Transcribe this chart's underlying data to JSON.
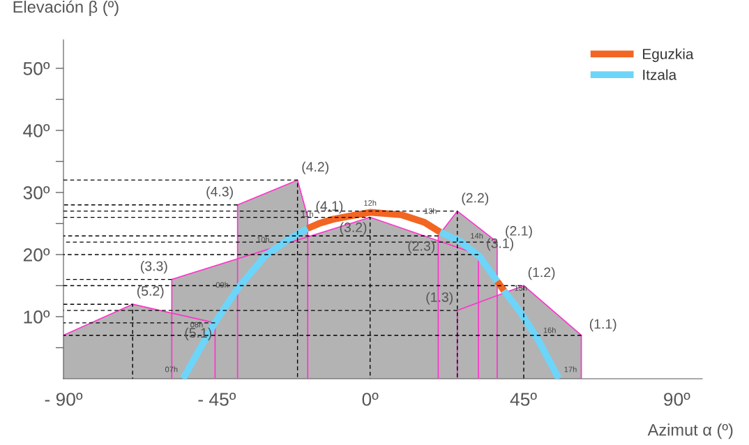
{
  "chart_data": {
    "type": "line",
    "xlabel": "Azimut α (º)",
    "ylabel": "Elevación β (º)",
    "xlim": [
      -90,
      97.5
    ],
    "ylim": [
      0,
      54.6
    ],
    "xticks": [
      {
        "value": -90,
        "label": "- 90º"
      },
      {
        "value": -45,
        "label": "- 45º"
      },
      {
        "value": 0,
        "label": "0º"
      },
      {
        "value": 45,
        "label": "45º"
      },
      {
        "value": 90,
        "label": "90º"
      }
    ],
    "yticks": [
      {
        "value": 5,
        "label": null
      },
      {
        "value": 10,
        "label": "10º"
      },
      {
        "value": 15,
        "label": null
      },
      {
        "value": 20,
        "label": "20º"
      },
      {
        "value": 25,
        "label": null
      },
      {
        "value": 30,
        "label": "30º"
      },
      {
        "value": 35,
        "label": null
      },
      {
        "value": 40,
        "label": "40º"
      },
      {
        "value": 45,
        "label": null
      },
      {
        "value": 50,
        "label": "50º"
      }
    ],
    "grid": false,
    "legend": "top right",
    "series": [
      {
        "type": "area",
        "color": "#b3b3b3",
        "x": [
          -90,
          -69.7,
          -45.5,
          -45.5
        ],
        "values": [
          7,
          12,
          9,
          0
        ]
      },
      {
        "type": "area",
        "color": "#b3b3b3",
        "x": [
          -58.2,
          -58.2,
          0,
          31.8,
          31.8
        ],
        "values": [
          0,
          16,
          26,
          20,
          0
        ]
      },
      {
        "type": "area",
        "color": "#b3b3b3",
        "x": [
          -38.9,
          -38.9,
          -21.3,
          -18.3,
          -18.3
        ],
        "values": [
          0,
          28,
          32,
          26,
          0
        ]
      },
      {
        "type": "area",
        "color": "#b3b3b3",
        "x": [
          20,
          20,
          25.6,
          37.3,
          37.3
        ],
        "values": [
          0,
          23,
          27,
          22,
          0
        ]
      },
      {
        "type": "area",
        "color": "#b3b3b3",
        "x": [
          25.6,
          25.6,
          45.1,
          62,
          62
        ],
        "values": [
          0,
          11,
          15,
          7,
          0
        ]
      },
      {
        "color": "#000000",
        "line_style": "dashed",
        "x": [
          -90,
          -69.7,
          -69.7
        ],
        "values": [
          12,
          12,
          0
        ]
      },
      {
        "color": "#000000",
        "line_style": "dashed",
        "x": [
          -45.5,
          -90
        ],
        "values": [
          9,
          9
        ]
      },
      {
        "color": "#000000",
        "line_style": "dashed",
        "x": [
          -58.2,
          -90
        ],
        "values": [
          16,
          16
        ]
      },
      {
        "color": "#000000",
        "line_style": "dashed",
        "x": [
          -38.9,
          -90
        ],
        "values": [
          28,
          28
        ]
      },
      {
        "color": "#000000",
        "line_style": "dashed",
        "x": [
          -90,
          -21.3,
          -21.3
        ],
        "values": [
          32,
          32,
          0
        ]
      },
      {
        "color": "#000000",
        "line_style": "dashed",
        "x": [
          -90,
          0,
          0
        ],
        "values": [
          26,
          26,
          0
        ]
      },
      {
        "color": "#000000",
        "line_style": "dashed",
        "x": [
          20,
          -90
        ],
        "values": [
          23,
          23
        ]
      },
      {
        "color": "#000000",
        "line_style": "dashed",
        "x": [
          31.8,
          -90
        ],
        "values": [
          20,
          20
        ]
      },
      {
        "color": "#000000",
        "line_style": "dashed",
        "x": [
          -90,
          25.6,
          25.6
        ],
        "values": [
          27,
          27,
          0
        ]
      },
      {
        "color": "#000000",
        "line_style": "dashed",
        "x": [
          37.3,
          -90
        ],
        "values": [
          22,
          22
        ]
      },
      {
        "color": "#000000",
        "line_style": "dashed",
        "x": [
          25.6,
          -90
        ],
        "values": [
          11,
          11
        ]
      },
      {
        "color": "#000000",
        "line_style": "dashed",
        "x": [
          -90,
          45.1,
          45.1
        ],
        "values": [
          15,
          15,
          0
        ]
      },
      {
        "color": "#000000",
        "line_style": "dashed",
        "x": [
          62,
          -90
        ],
        "values": [
          7,
          7
        ]
      },
      {
        "name": "Eguzkia",
        "color": "#f26522",
        "x": [
          -18.4,
          -15,
          -10.8,
          0,
          9.3,
          14.3,
          15.9,
          20.6,
          30,
          37.3,
          39.3
        ],
        "values": [
          24.2,
          25,
          25.7,
          26.8,
          26.4,
          25.5,
          25.2,
          23.6,
          null,
          15.7,
          14.2
        ]
      },
      {
        "name": "Itzala",
        "color": "#6dd5f9",
        "x": [
          -54.9,
          -47.5,
          -45.5,
          -40,
          -38.8,
          -30.8,
          -28,
          -24.1,
          -18.4,
          0,
          20.6,
          26.6,
          27.9,
          32,
          37.3,
          38,
          39.3,
          40.8,
          44,
          49.3,
          55.4
        ],
        "values": [
          0,
          7.2,
          9.1,
          13.6,
          14.6,
          19.8,
          20.9,
          22.4,
          24.2,
          null,
          23.6,
          22.1,
          21.5,
          19.8,
          15.7,
          null,
          14.2,
          13.1,
          10.8,
          6.3,
          0
        ]
      }
    ],
    "annotations": [
      {
        "text": "07h",
        "x": -54.9,
        "y": 0
      },
      {
        "text": "08h",
        "x": -47.5,
        "y": 7.2
      },
      {
        "text": "09h",
        "x": -40,
        "y": 13.6
      },
      {
        "text": "10h",
        "x": -28,
        "y": 20.9
      },
      {
        "text": "11h",
        "x": -15,
        "y": 25
      },
      {
        "text": "12h",
        "x": 0,
        "y": 26.8
      },
      {
        "text": "13h",
        "x": 14.3,
        "y": 25.5
      },
      {
        "text": "14h",
        "x": 27.9,
        "y": 21.5
      },
      {
        "text": "15h",
        "x": 40.8,
        "y": 13.1
      },
      {
        "text": "16h",
        "x": 49.3,
        "y": 6.3
      },
      {
        "text": "17h",
        "x": 55.4,
        "y": 0
      },
      {
        "text": "(5.2)",
        "x": -69.7,
        "y": 12
      },
      {
        "text": "(5.1)",
        "x": -45.5,
        "y": 9
      },
      {
        "text": "(3.3)",
        "x": -58.2,
        "y": 16
      },
      {
        "text": "(3.2)",
        "x": 0,
        "y": 26
      },
      {
        "text": "(3.1)",
        "x": 31.8,
        "y": 20
      },
      {
        "text": "(4.3)",
        "x": -38.9,
        "y": 28
      },
      {
        "text": "(4.2)",
        "x": -21.3,
        "y": 32
      },
      {
        "text": "(4.1)",
        "x": -18.3,
        "y": 26
      },
      {
        "text": "(2.3)",
        "x": 20,
        "y": 23
      },
      {
        "text": "(2.2)",
        "x": 25.6,
        "y": 27
      },
      {
        "text": "(2.1)",
        "x": 37.3,
        "y": 22
      },
      {
        "text": "(1.3)",
        "x": 25.6,
        "y": 11
      },
      {
        "text": "(1.2)",
        "x": 45.1,
        "y": 15
      },
      {
        "text": "(1.1)",
        "x": 62,
        "y": 7
      }
    ]
  }
}
